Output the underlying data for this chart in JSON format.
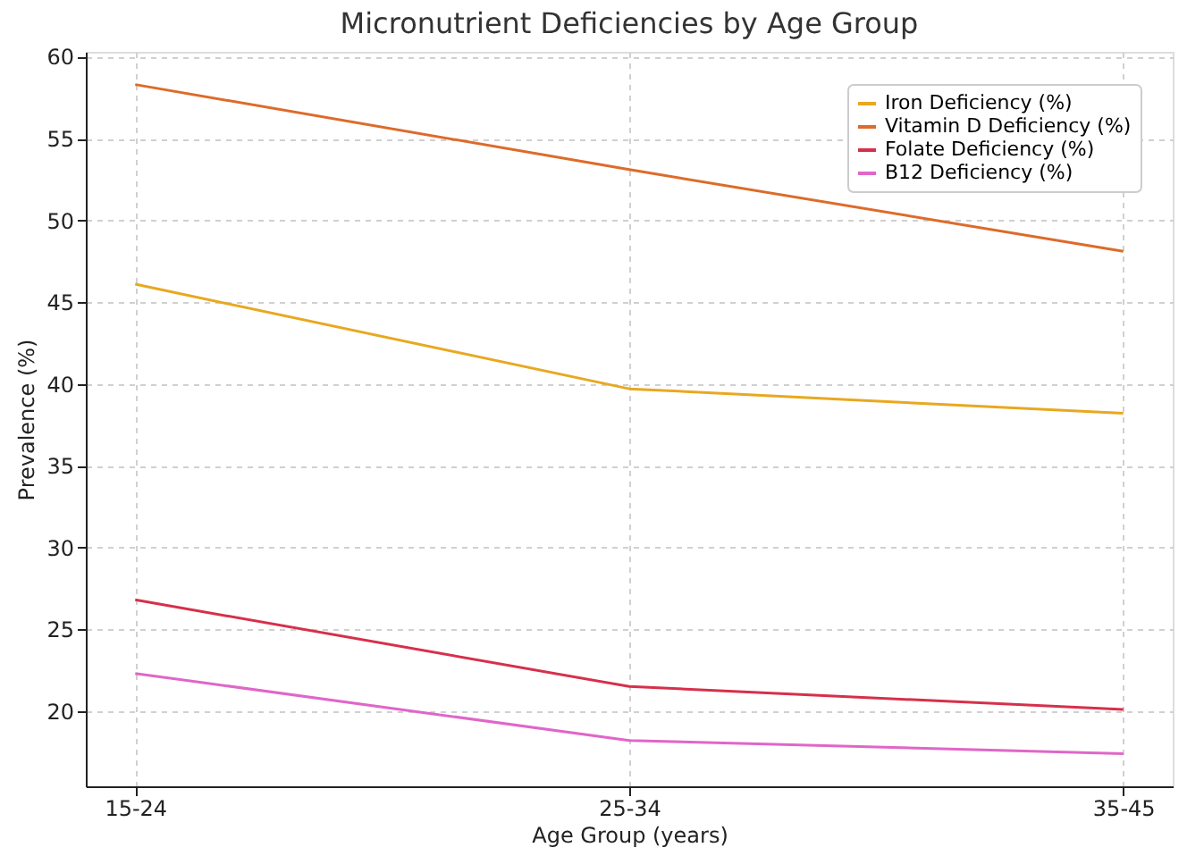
{
  "chart_data": {
    "type": "line",
    "title": "Micronutrient Deficiencies by Age Group",
    "xlabel": "Age Group (years)",
    "ylabel": "Prevalence (%)",
    "categories": [
      "15-24",
      "25-34",
      "35-45"
    ],
    "series": [
      {
        "name": "Iron Deficiency (%)",
        "color": "#e8a820",
        "values": [
          46.1,
          39.7,
          38.2
        ]
      },
      {
        "name": "Vitamin D Deficiency (%)",
        "color": "#dd6b2a",
        "values": [
          58.3,
          53.1,
          48.1
        ]
      },
      {
        "name": "Folate Deficiency (%)",
        "color": "#d6304a",
        "values": [
          26.8,
          21.5,
          20.1
        ]
      },
      {
        "name": "B12 Deficiency (%)",
        "color": "#e066c8",
        "values": [
          22.3,
          18.2,
          17.4
        ]
      }
    ],
    "ylim": [
      15.4,
      60.3
    ],
    "yticks": [
      20,
      25,
      30,
      35,
      40,
      45,
      50,
      55,
      60
    ],
    "grid": true,
    "legend": "top right",
    "marker": "none",
    "line_style": "solid"
  }
}
